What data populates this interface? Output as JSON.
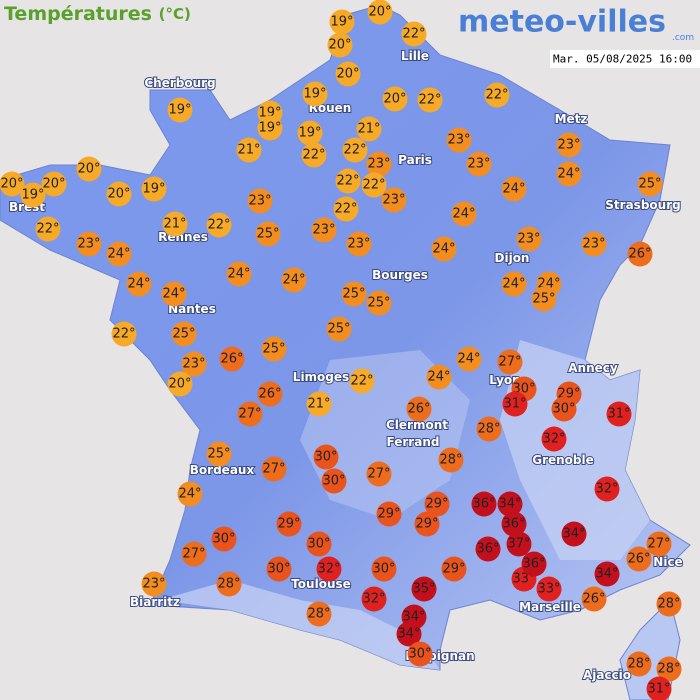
{
  "header": {
    "title": "Températures",
    "unit": "(°C)",
    "logo": "meteo-villes",
    "logo_suffix": ".com",
    "timestamp": "Mar. 05/08/2025 16:00"
  },
  "cities": [
    "Lille",
    "Cherbourg",
    "Rouen",
    "Paris",
    "Metz",
    "Strasbourg",
    "Brest",
    "Rennes",
    "Dijon",
    "Bourges",
    "Nantes",
    "Lyon",
    "Annecy",
    "Limoges",
    "Clermont",
    "Ferrand",
    "Grenoble",
    "Bordeaux",
    "Nice",
    "Toulouse",
    "Marseille",
    "Biarritz",
    "Perpignan",
    "Ajaccio"
  ],
  "temperatures": [
    {
      "value": 20,
      "label": "20°"
    },
    {
      "value": 19,
      "label": "19°"
    },
    {
      "value": 22,
      "label": "22°"
    },
    {
      "value": 20,
      "label": "20°"
    },
    {
      "value": 20,
      "label": "20°"
    },
    {
      "value": 19,
      "label": "19°"
    },
    {
      "value": 20,
      "label": "20°"
    },
    {
      "value": 22,
      "label": "22°"
    },
    {
      "value": 22,
      "label": "22°"
    },
    {
      "value": 19,
      "label": "19°"
    },
    {
      "value": 19,
      "label": "19°"
    },
    {
      "value": 19,
      "label": "19°"
    },
    {
      "value": 19,
      "label": "19°"
    },
    {
      "value": 21,
      "label": "21°"
    },
    {
      "value": 21,
      "label": "21°"
    },
    {
      "value": 22,
      "label": "22°"
    },
    {
      "value": 22,
      "label": "22°"
    },
    {
      "value": 23,
      "label": "23°"
    },
    {
      "value": 23,
      "label": "23°"
    },
    {
      "value": 22,
      "label": "22°"
    },
    {
      "value": 22,
      "label": "22°"
    },
    {
      "value": 23,
      "label": "23°"
    },
    {
      "value": 23,
      "label": "23°"
    },
    {
      "value": 24,
      "label": "24°"
    },
    {
      "value": 25,
      "label": "25°"
    },
    {
      "value": 20,
      "label": "20°"
    },
    {
      "value": 20,
      "label": "20°"
    },
    {
      "value": 19,
      "label": "19°"
    },
    {
      "value": 20,
      "label": "20°"
    },
    {
      "value": 20,
      "label": "20°"
    },
    {
      "value": 19,
      "label": "19°"
    },
    {
      "value": 22,
      "label": "22°"
    },
    {
      "value": 21,
      "label": "21°"
    },
    {
      "value": 22,
      "label": "22°"
    },
    {
      "value": 23,
      "label": "23°"
    },
    {
      "value": 23,
      "label": "23°"
    },
    {
      "value": 22,
      "label": "22°"
    },
    {
      "value": 24,
      "label": "24°"
    },
    {
      "value": 24,
      "label": "24°"
    },
    {
      "value": 23,
      "label": "23°"
    },
    {
      "value": 24,
      "label": "24°"
    },
    {
      "value": 25,
      "label": "25°"
    },
    {
      "value": 23,
      "label": "23°"
    },
    {
      "value": 23,
      "label": "23°"
    },
    {
      "value": 24,
      "label": "24°"
    },
    {
      "value": 23,
      "label": "23°"
    },
    {
      "value": 23,
      "label": "23°"
    },
    {
      "value": 26,
      "label": "26°"
    },
    {
      "value": 24,
      "label": "24°"
    },
    {
      "value": 24,
      "label": "24°"
    },
    {
      "value": 24,
      "label": "24°"
    },
    {
      "value": 24,
      "label": "24°"
    },
    {
      "value": 25,
      "label": "25°"
    },
    {
      "value": 25,
      "label": "25°"
    },
    {
      "value": 24,
      "label": "24°"
    },
    {
      "value": 24,
      "label": "24°"
    },
    {
      "value": 25,
      "label": "25°"
    },
    {
      "value": 22,
      "label": "22°"
    },
    {
      "value": 25,
      "label": "25°"
    },
    {
      "value": 25,
      "label": "25°"
    },
    {
      "value": 23,
      "label": "23°"
    },
    {
      "value": 26,
      "label": "26°"
    },
    {
      "value": 25,
      "label": "25°"
    },
    {
      "value": 24,
      "label": "24°"
    },
    {
      "value": 27,
      "label": "27°"
    },
    {
      "value": 20,
      "label": "20°"
    },
    {
      "value": 22,
      "label": "22°"
    },
    {
      "value": 24,
      "label": "24°"
    },
    {
      "value": 30,
      "label": "30°"
    },
    {
      "value": 29,
      "label": "29°"
    },
    {
      "value": 30,
      "label": "30°"
    },
    {
      "value": 31,
      "label": "31°"
    },
    {
      "value": 31,
      "label": "31°"
    },
    {
      "value": 26,
      "label": "26°"
    },
    {
      "value": 21,
      "label": "21°"
    },
    {
      "value": 27,
      "label": "27°"
    },
    {
      "value": 26,
      "label": "26°"
    },
    {
      "value": 28,
      "label": "28°"
    },
    {
      "value": 32,
      "label": "32°"
    },
    {
      "value": 25,
      "label": "25°"
    },
    {
      "value": 30,
      "label": "30°"
    },
    {
      "value": 27,
      "label": "27°"
    },
    {
      "value": 30,
      "label": "30°"
    },
    {
      "value": 27,
      "label": "27°"
    },
    {
      "value": 28,
      "label": "28°"
    },
    {
      "value": 24,
      "label": "24°"
    },
    {
      "value": 32,
      "label": "32°"
    },
    {
      "value": 29,
      "label": "29°"
    },
    {
      "value": 29,
      "label": "29°"
    },
    {
      "value": 29,
      "label": "29°"
    },
    {
      "value": 29,
      "label": "29°"
    },
    {
      "value": 36,
      "label": "36°"
    },
    {
      "value": 34,
      "label": "34°"
    },
    {
      "value": 36,
      "label": "36°"
    },
    {
      "value": 34,
      "label": "34°"
    },
    {
      "value": 30,
      "label": "30°"
    },
    {
      "value": 30,
      "label": "30°"
    },
    {
      "value": 37,
      "label": "37°"
    },
    {
      "value": 36,
      "label": "36°"
    },
    {
      "value": 27,
      "label": "27°"
    },
    {
      "value": 30,
      "label": "30°"
    },
    {
      "value": 32,
      "label": "32°"
    },
    {
      "value": 30,
      "label": "30°"
    },
    {
      "value": 29,
      "label": "29°"
    },
    {
      "value": 33,
      "label": "33°"
    },
    {
      "value": 36,
      "label": "36°"
    },
    {
      "value": 33,
      "label": "33°"
    },
    {
      "value": 26,
      "label": "26°"
    },
    {
      "value": 27,
      "label": "27°"
    },
    {
      "value": 34,
      "label": "34°"
    },
    {
      "value": 23,
      "label": "23°"
    },
    {
      "value": 28,
      "label": "28°"
    },
    {
      "value": 35,
      "label": "35°"
    },
    {
      "value": 26,
      "label": "26°"
    },
    {
      "value": 28,
      "label": "28°"
    },
    {
      "value": 32,
      "label": "32°"
    },
    {
      "value": 34,
      "label": "34°"
    },
    {
      "value": 28,
      "label": "28°"
    },
    {
      "value": 34,
      "label": "34°"
    },
    {
      "value": 30,
      "label": "30°"
    },
    {
      "value": 28,
      "label": "28°"
    },
    {
      "value": 28,
      "label": "28°"
    },
    {
      "value": 31,
      "label": "31°"
    }
  ]
}
